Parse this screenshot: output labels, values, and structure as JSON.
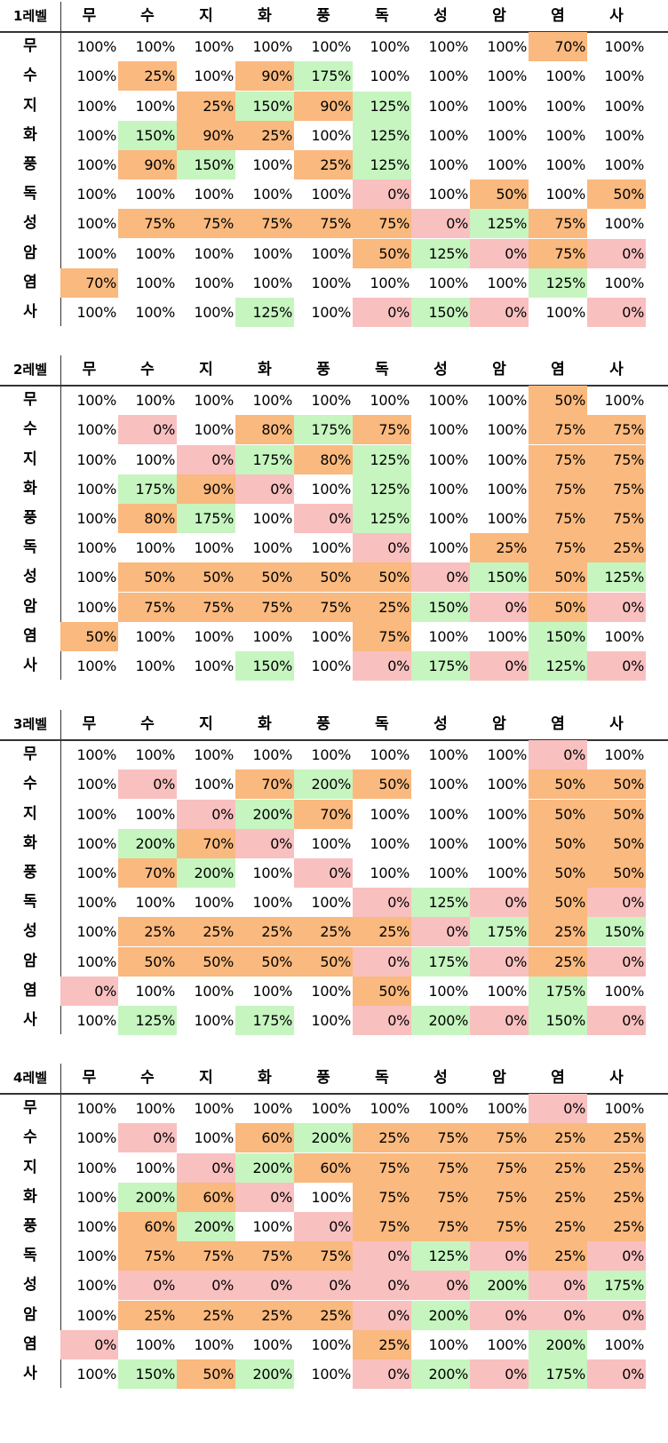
{
  "columns": [
    "무",
    "수",
    "지",
    "화",
    "풍",
    "독",
    "성",
    "암",
    "염",
    "사"
  ],
  "colors": {
    "O": "#fab97e",
    "G": "#c6f5c0",
    "R": "#f9c0c0"
  },
  "levels": [
    {
      "label": "1레벨",
      "rows": [
        {
          "label": "무",
          "values": [
            "100%",
            "100%",
            "100%",
            "100%",
            "100%",
            "100%",
            "100%",
            "100%",
            "70%",
            "100%"
          ],
          "colors": [
            "",
            "",
            "",
            "",
            "",
            "",
            "",
            "",
            "O",
            ""
          ]
        },
        {
          "label": "수",
          "values": [
            "100%",
            "25%",
            "100%",
            "90%",
            "175%",
            "100%",
            "100%",
            "100%",
            "100%",
            "100%"
          ],
          "colors": [
            "",
            "O",
            "",
            "O",
            "G",
            "",
            "",
            "",
            "",
            ""
          ]
        },
        {
          "label": "지",
          "values": [
            "100%",
            "100%",
            "25%",
            "150%",
            "90%",
            "125%",
            "100%",
            "100%",
            "100%",
            "100%"
          ],
          "colors": [
            "",
            "",
            "O",
            "G",
            "O",
            "G",
            "",
            "",
            "",
            ""
          ]
        },
        {
          "label": "화",
          "values": [
            "100%",
            "150%",
            "90%",
            "25%",
            "100%",
            "125%",
            "100%",
            "100%",
            "100%",
            "100%"
          ],
          "colors": [
            "",
            "G",
            "O",
            "O",
            "",
            "G",
            "",
            "",
            "",
            ""
          ]
        },
        {
          "label": "풍",
          "values": [
            "100%",
            "90%",
            "150%",
            "100%",
            "25%",
            "125%",
            "100%",
            "100%",
            "100%",
            "100%"
          ],
          "colors": [
            "",
            "O",
            "G",
            "",
            "O",
            "G",
            "",
            "",
            "",
            ""
          ]
        },
        {
          "label": "독",
          "values": [
            "100%",
            "100%",
            "100%",
            "100%",
            "100%",
            "0%",
            "100%",
            "50%",
            "100%",
            "50%"
          ],
          "colors": [
            "",
            "",
            "",
            "",
            "",
            "R",
            "",
            "O",
            "",
            "O"
          ]
        },
        {
          "label": "성",
          "values": [
            "100%",
            "75%",
            "75%",
            "75%",
            "75%",
            "75%",
            "0%",
            "125%",
            "75%",
            "100%"
          ],
          "colors": [
            "",
            "O",
            "O",
            "O",
            "O",
            "O",
            "R",
            "G",
            "O",
            ""
          ]
        },
        {
          "label": "암",
          "values": [
            "100%",
            "100%",
            "100%",
            "100%",
            "100%",
            "50%",
            "125%",
            "0%",
            "75%",
            "0%"
          ],
          "colors": [
            "",
            "",
            "",
            "",
            "",
            "O",
            "G",
            "R",
            "O",
            "R"
          ]
        },
        {
          "label": "염",
          "values": [
            "70%",
            "100%",
            "100%",
            "100%",
            "100%",
            "100%",
            "100%",
            "100%",
            "125%",
            "100%"
          ],
          "colors": [
            "O",
            "",
            "",
            "",
            "",
            "",
            "",
            "",
            "G",
            ""
          ]
        },
        {
          "label": "사",
          "values": [
            "100%",
            "100%",
            "100%",
            "125%",
            "100%",
            "0%",
            "150%",
            "0%",
            "100%",
            "0%"
          ],
          "colors": [
            "",
            "",
            "",
            "G",
            "",
            "R",
            "G",
            "R",
            "",
            "R"
          ]
        }
      ]
    },
    {
      "label": "2레벨",
      "rows": [
        {
          "label": "무",
          "values": [
            "100%",
            "100%",
            "100%",
            "100%",
            "100%",
            "100%",
            "100%",
            "100%",
            "50%",
            "100%"
          ],
          "colors": [
            "",
            "",
            "",
            "",
            "",
            "",
            "",
            "",
            "O",
            ""
          ]
        },
        {
          "label": "수",
          "values": [
            "100%",
            "0%",
            "100%",
            "80%",
            "175%",
            "75%",
            "100%",
            "100%",
            "75%",
            "75%"
          ],
          "colors": [
            "",
            "R",
            "",
            "O",
            "G",
            "O",
            "",
            "",
            "O",
            "O"
          ]
        },
        {
          "label": "지",
          "values": [
            "100%",
            "100%",
            "0%",
            "175%",
            "80%",
            "125%",
            "100%",
            "100%",
            "75%",
            "75%"
          ],
          "colors": [
            "",
            "",
            "R",
            "G",
            "O",
            "G",
            "",
            "",
            "O",
            "O"
          ]
        },
        {
          "label": "화",
          "values": [
            "100%",
            "175%",
            "90%",
            "0%",
            "100%",
            "125%",
            "100%",
            "100%",
            "75%",
            "75%"
          ],
          "colors": [
            "",
            "G",
            "O",
            "R",
            "",
            "G",
            "",
            "",
            "O",
            "O"
          ]
        },
        {
          "label": "풍",
          "values": [
            "100%",
            "80%",
            "175%",
            "100%",
            "0%",
            "125%",
            "100%",
            "100%",
            "75%",
            "75%"
          ],
          "colors": [
            "",
            "O",
            "G",
            "",
            "R",
            "G",
            "",
            "",
            "O",
            "O"
          ]
        },
        {
          "label": "독",
          "values": [
            "100%",
            "100%",
            "100%",
            "100%",
            "100%",
            "0%",
            "100%",
            "25%",
            "75%",
            "25%"
          ],
          "colors": [
            "",
            "",
            "",
            "",
            "",
            "R",
            "",
            "O",
            "O",
            "O"
          ]
        },
        {
          "label": "성",
          "values": [
            "100%",
            "50%",
            "50%",
            "50%",
            "50%",
            "50%",
            "0%",
            "150%",
            "50%",
            "125%"
          ],
          "colors": [
            "",
            "O",
            "O",
            "O",
            "O",
            "O",
            "R",
            "G",
            "O",
            "G"
          ]
        },
        {
          "label": "암",
          "values": [
            "100%",
            "75%",
            "75%",
            "75%",
            "75%",
            "25%",
            "150%",
            "0%",
            "50%",
            "0%"
          ],
          "colors": [
            "",
            "O",
            "O",
            "O",
            "O",
            "O",
            "G",
            "R",
            "O",
            "R"
          ]
        },
        {
          "label": "염",
          "values": [
            "50%",
            "100%",
            "100%",
            "100%",
            "100%",
            "75%",
            "100%",
            "100%",
            "150%",
            "100%"
          ],
          "colors": [
            "O",
            "",
            "",
            "",
            "",
            "O",
            "",
            "",
            "G",
            ""
          ]
        },
        {
          "label": "사",
          "values": [
            "100%",
            "100%",
            "100%",
            "150%",
            "100%",
            "0%",
            "175%",
            "0%",
            "125%",
            "0%"
          ],
          "colors": [
            "",
            "",
            "",
            "G",
            "",
            "R",
            "G",
            "R",
            "G",
            "R"
          ]
        }
      ]
    },
    {
      "label": "3레벨",
      "rows": [
        {
          "label": "무",
          "values": [
            "100%",
            "100%",
            "100%",
            "100%",
            "100%",
            "100%",
            "100%",
            "100%",
            "0%",
            "100%"
          ],
          "colors": [
            "",
            "",
            "",
            "",
            "",
            "",
            "",
            "",
            "R",
            ""
          ]
        },
        {
          "label": "수",
          "values": [
            "100%",
            "0%",
            "100%",
            "70%",
            "200%",
            "50%",
            "100%",
            "100%",
            "50%",
            "50%"
          ],
          "colors": [
            "",
            "R",
            "",
            "O",
            "G",
            "O",
            "",
            "",
            "O",
            "O"
          ]
        },
        {
          "label": "지",
          "values": [
            "100%",
            "100%",
            "0%",
            "200%",
            "70%",
            "100%",
            "100%",
            "100%",
            "50%",
            "50%"
          ],
          "colors": [
            "",
            "",
            "R",
            "G",
            "O",
            "",
            "",
            "",
            "O",
            "O"
          ]
        },
        {
          "label": "화",
          "values": [
            "100%",
            "200%",
            "70%",
            "0%",
            "100%",
            "100%",
            "100%",
            "100%",
            "50%",
            "50%"
          ],
          "colors": [
            "",
            "G",
            "O",
            "R",
            "",
            "",
            "",
            "",
            "O",
            "O"
          ]
        },
        {
          "label": "풍",
          "values": [
            "100%",
            "70%",
            "200%",
            "100%",
            "0%",
            "100%",
            "100%",
            "100%",
            "50%",
            "50%"
          ],
          "colors": [
            "",
            "O",
            "G",
            "",
            "R",
            "",
            "",
            "",
            "O",
            "O"
          ]
        },
        {
          "label": "독",
          "values": [
            "100%",
            "100%",
            "100%",
            "100%",
            "100%",
            "0%",
            "125%",
            "0%",
            "50%",
            "0%"
          ],
          "colors": [
            "",
            "",
            "",
            "",
            "",
            "R",
            "G",
            "R",
            "O",
            "R"
          ]
        },
        {
          "label": "성",
          "values": [
            "100%",
            "25%",
            "25%",
            "25%",
            "25%",
            "25%",
            "0%",
            "175%",
            "25%",
            "150%"
          ],
          "colors": [
            "",
            "O",
            "O",
            "O",
            "O",
            "O",
            "R",
            "G",
            "O",
            "G"
          ]
        },
        {
          "label": "암",
          "values": [
            "100%",
            "50%",
            "50%",
            "50%",
            "50%",
            "0%",
            "175%",
            "0%",
            "25%",
            "0%"
          ],
          "colors": [
            "",
            "O",
            "O",
            "O",
            "O",
            "R",
            "G",
            "R",
            "O",
            "R"
          ]
        },
        {
          "label": "염",
          "values": [
            "0%",
            "100%",
            "100%",
            "100%",
            "100%",
            "50%",
            "100%",
            "100%",
            "175%",
            "100%"
          ],
          "colors": [
            "R",
            "",
            "",
            "",
            "",
            "O",
            "",
            "",
            "G",
            ""
          ]
        },
        {
          "label": "사",
          "values": [
            "100%",
            "125%",
            "100%",
            "175%",
            "100%",
            "0%",
            "200%",
            "0%",
            "150%",
            "0%"
          ],
          "colors": [
            "",
            "G",
            "",
            "G",
            "",
            "R",
            "G",
            "R",
            "G",
            "R"
          ]
        }
      ]
    },
    {
      "label": "4레벨",
      "rows": [
        {
          "label": "무",
          "values": [
            "100%",
            "100%",
            "100%",
            "100%",
            "100%",
            "100%",
            "100%",
            "100%",
            "0%",
            "100%"
          ],
          "colors": [
            "",
            "",
            "",
            "",
            "",
            "",
            "",
            "",
            "R",
            ""
          ]
        },
        {
          "label": "수",
          "values": [
            "100%",
            "0%",
            "100%",
            "60%",
            "200%",
            "25%",
            "75%",
            "75%",
            "25%",
            "25%"
          ],
          "colors": [
            "",
            "R",
            "",
            "O",
            "G",
            "O",
            "O",
            "O",
            "O",
            "O"
          ]
        },
        {
          "label": "지",
          "values": [
            "100%",
            "100%",
            "0%",
            "200%",
            "60%",
            "75%",
            "75%",
            "75%",
            "25%",
            "25%"
          ],
          "colors": [
            "",
            "",
            "R",
            "G",
            "O",
            "O",
            "O",
            "O",
            "O",
            "O"
          ]
        },
        {
          "label": "화",
          "values": [
            "100%",
            "200%",
            "60%",
            "0%",
            "100%",
            "75%",
            "75%",
            "75%",
            "25%",
            "25%"
          ],
          "colors": [
            "",
            "G",
            "O",
            "R",
            "",
            "O",
            "O",
            "O",
            "O",
            "O"
          ]
        },
        {
          "label": "풍",
          "values": [
            "100%",
            "60%",
            "200%",
            "100%",
            "0%",
            "75%",
            "75%",
            "75%",
            "25%",
            "25%"
          ],
          "colors": [
            "",
            "O",
            "G",
            "",
            "R",
            "O",
            "O",
            "O",
            "O",
            "O"
          ]
        },
        {
          "label": "독",
          "values": [
            "100%",
            "75%",
            "75%",
            "75%",
            "75%",
            "0%",
            "125%",
            "0%",
            "25%",
            "0%"
          ],
          "colors": [
            "",
            "O",
            "O",
            "O",
            "O",
            "R",
            "G",
            "R",
            "O",
            "R"
          ]
        },
        {
          "label": "성",
          "values": [
            "100%",
            "0%",
            "0%",
            "0%",
            "0%",
            "0%",
            "0%",
            "200%",
            "0%",
            "175%"
          ],
          "colors": [
            "",
            "R",
            "R",
            "R",
            "R",
            "R",
            "R",
            "G",
            "R",
            "G"
          ]
        },
        {
          "label": "암",
          "values": [
            "100%",
            "25%",
            "25%",
            "25%",
            "25%",
            "0%",
            "200%",
            "0%",
            "0%",
            "0%"
          ],
          "colors": [
            "",
            "O",
            "O",
            "O",
            "O",
            "R",
            "G",
            "R",
            "R",
            "R"
          ]
        },
        {
          "label": "염",
          "values": [
            "0%",
            "100%",
            "100%",
            "100%",
            "100%",
            "25%",
            "100%",
            "100%",
            "200%",
            "100%"
          ],
          "colors": [
            "R",
            "",
            "",
            "",
            "",
            "O",
            "",
            "",
            "G",
            ""
          ]
        },
        {
          "label": "사",
          "values": [
            "100%",
            "150%",
            "50%",
            "200%",
            "100%",
            "0%",
            "200%",
            "0%",
            "175%",
            "0%"
          ],
          "colors": [
            "",
            "G",
            "O",
            "G",
            "",
            "R",
            "G",
            "R",
            "G",
            "R"
          ]
        }
      ]
    }
  ]
}
